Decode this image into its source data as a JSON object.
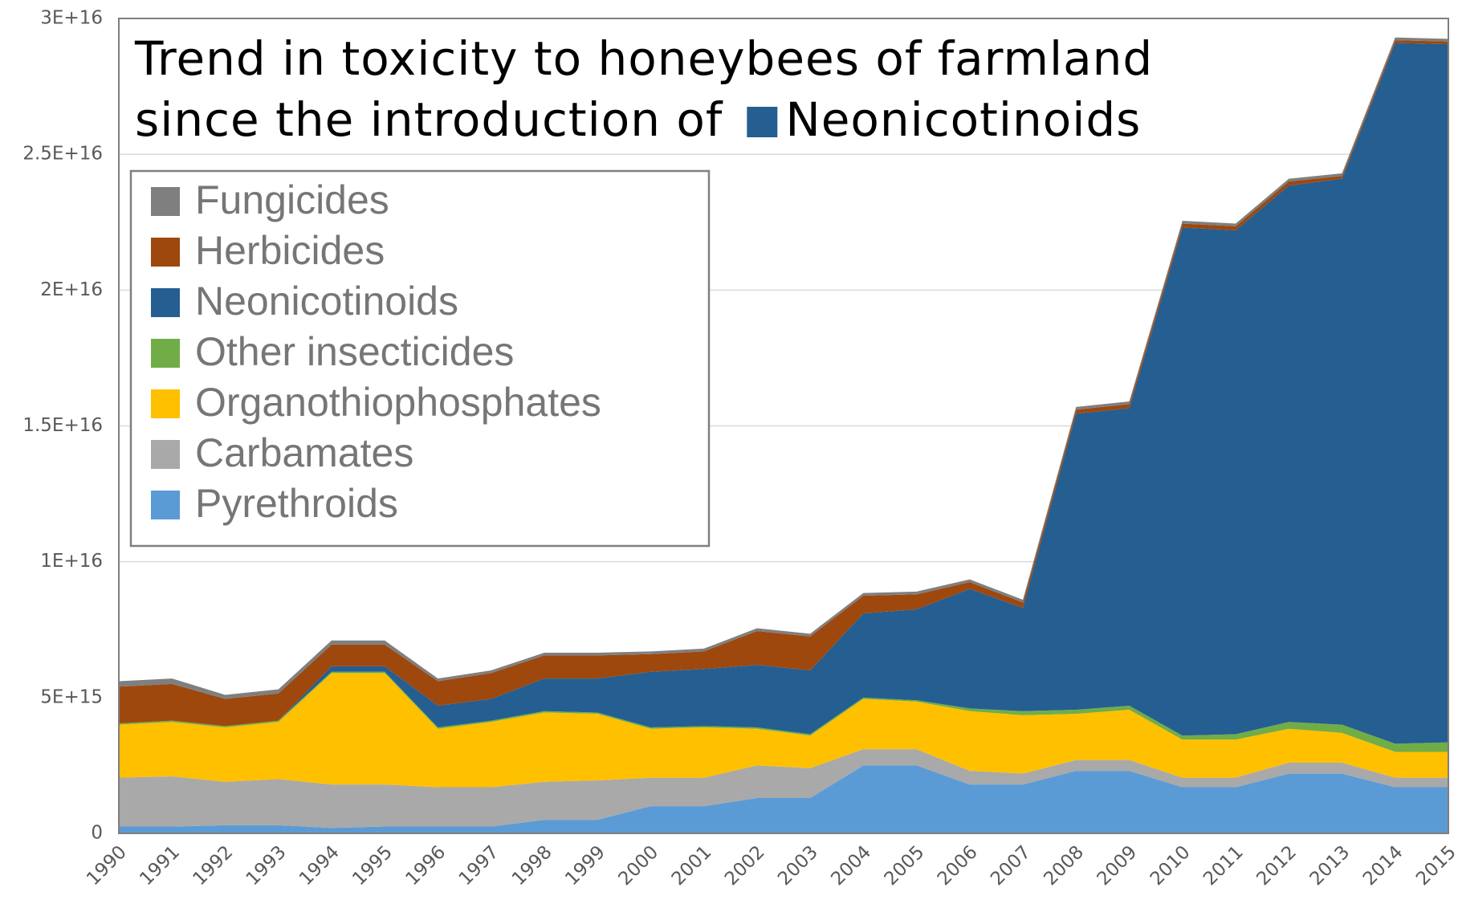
{
  "chart_data": {
    "type": "stacked_area",
    "title": [
      "Trend in toxicity to honeybees of farmland",
      "since the introduction of"
    ],
    "title_series": "Neonicotinoids",
    "x": [
      1990,
      1991,
      1992,
      1993,
      1994,
      1995,
      1996,
      1997,
      1998,
      1999,
      2000,
      2001,
      2002,
      2003,
      2004,
      2005,
      2006,
      2007,
      2008,
      2009,
      2010,
      2011,
      2012,
      2013,
      2014,
      2015
    ],
    "xlim": [
      1990,
      2015
    ],
    "ylim": [
      0,
      3e+16
    ],
    "yticks": [
      0,
      {
        "value": 5000000000000000.0,
        "label": "5E+15"
      },
      {
        "value": 1e+16,
        "label": "1E+16"
      },
      {
        "value": 1.5e+16,
        "label": "1.5E+16"
      },
      {
        "value": 2e+16,
        "label": "2E+16"
      },
      {
        "value": 2.5e+16,
        "label": "2.5E+16"
      },
      {
        "value": 3e+16,
        "label": "3E+16"
      }
    ],
    "grid": true,
    "legend": "upper left",
    "series": [
      {
        "name": "Fungicides",
        "color": "#7f7f7f",
        "values": [
          200000000000000.0,
          200000000000000.0,
          150000000000000.0,
          150000000000000.0,
          150000000000000.0,
          150000000000000.0,
          100000000000000.0,
          100000000000000.0,
          100000000000000.0,
          100000000000000.0,
          100000000000000.0,
          100000000000000.0,
          100000000000000.0,
          100000000000000.0,
          100000000000000.0,
          100000000000000.0,
          100000000000000.0,
          100000000000000.0,
          100000000000000.0,
          100000000000000.0,
          100000000000000.0,
          100000000000000.0,
          100000000000000.0,
          100000000000000.0,
          100000000000000.0,
          100000000000000.0
        ]
      },
      {
        "name": "Herbicides",
        "color": "#9e480e",
        "values": [
          1350000000000000.0,
          1350000000000000.0,
          1000000000000000.0,
          1000000000000000.0,
          800000000000000.0,
          800000000000000.0,
          900000000000000.0,
          950000000000000.0,
          850000000000000.0,
          850000000000000.0,
          650000000000000.0,
          650000000000000.0,
          1250000000000000.0,
          1250000000000000.0,
          650000000000000.0,
          550000000000000.0,
          250000000000000.0,
          200000000000000.0,
          150000000000000.0,
          150000000000000.0,
          150000000000000.0,
          150000000000000.0,
          150000000000000.0,
          100000000000000.0,
          100000000000000.0,
          100000000000000.0
        ]
      },
      {
        "name": "Neonicotinoids",
        "color": "#255e91",
        "values": [
          0,
          0,
          0,
          0,
          200000000000000.0,
          200000000000000.0,
          800000000000000.0,
          800000000000000.0,
          1200000000000000.0,
          1250000000000000.0,
          2050000000000000.0,
          2100000000000000.0,
          2300000000000000.0,
          2350000000000000.0,
          3100000000000000.0,
          3350000000000000.0,
          4400000000000000.0,
          3800000000000000.0,
          1.09e+16,
          1.095e+16,
          1.87e+16,
          1.855e+16,
          1.975e+16,
          2.01e+16,
          2.58e+16,
          2.57e+16
        ]
      },
      {
        "name": "Other insecticides",
        "color": "#70ad47",
        "values": [
          50000000000000.0,
          50000000000000.0,
          50000000000000.0,
          50000000000000.0,
          50000000000000.0,
          50000000000000.0,
          50000000000000.0,
          50000000000000.0,
          50000000000000.0,
          50000000000000.0,
          50000000000000.0,
          50000000000000.0,
          50000000000000.0,
          50000000000000.0,
          50000000000000.0,
          50000000000000.0,
          100000000000000.0,
          150000000000000.0,
          150000000000000.0,
          150000000000000.0,
          150000000000000.0,
          200000000000000.0,
          250000000000000.0,
          300000000000000.0,
          300000000000000.0,
          350000000000000.0
        ]
      },
      {
        "name": "Organothiophosphates",
        "color": "#ffc000",
        "values": [
          1950000000000000.0,
          2000000000000000.0,
          2000000000000000.0,
          2100000000000000.0,
          4100000000000000.0,
          4100000000000000.0,
          2150000000000000.0,
          2400000000000000.0,
          2550000000000000.0,
          2450000000000000.0,
          1800000000000000.0,
          1850000000000000.0,
          1350000000000000.0,
          1200000000000000.0,
          1850000000000000.0,
          1750000000000000.0,
          2200000000000000.0,
          2150000000000000.0,
          1700000000000000.0,
          1850000000000000.0,
          1400000000000000.0,
          1400000000000000.0,
          1250000000000000.0,
          1100000000000000.0,
          950000000000000.0,
          950000000000000.0
        ]
      },
      {
        "name": "Carbamates",
        "color": "#a9a9a9",
        "values": [
          1800000000000000.0,
          1850000000000000.0,
          1600000000000000.0,
          1700000000000000.0,
          1600000000000000.0,
          1550000000000000.0,
          1450000000000000.0,
          1450000000000000.0,
          1400000000000000.0,
          1450000000000000.0,
          1050000000000000.0,
          1050000000000000.0,
          1200000000000000.0,
          1100000000000000.0,
          600000000000000.0,
          600000000000000.0,
          500000000000000.0,
          400000000000000.0,
          400000000000000.0,
          400000000000000.0,
          350000000000000.0,
          350000000000000.0,
          400000000000000.0,
          400000000000000.0,
          350000000000000.0,
          350000000000000.0
        ]
      },
      {
        "name": "Pyrethroids",
        "color": "#5b9bd5",
        "values": [
          250000000000000.0,
          250000000000000.0,
          300000000000000.0,
          300000000000000.0,
          200000000000000.0,
          250000000000000.0,
          250000000000000.0,
          250000000000000.0,
          500000000000000.0,
          500000000000000.0,
          1000000000000000.0,
          1000000000000000.0,
          1300000000000000.0,
          1300000000000000.0,
          2500000000000000.0,
          2500000000000000.0,
          1800000000000000.0,
          1800000000000000.0,
          2300000000000000.0,
          2300000000000000.0,
          1700000000000000.0,
          1700000000000000.0,
          2200000000000000.0,
          2200000000000000.0,
          1700000000000000.0,
          1700000000000000.0
        ]
      }
    ]
  }
}
